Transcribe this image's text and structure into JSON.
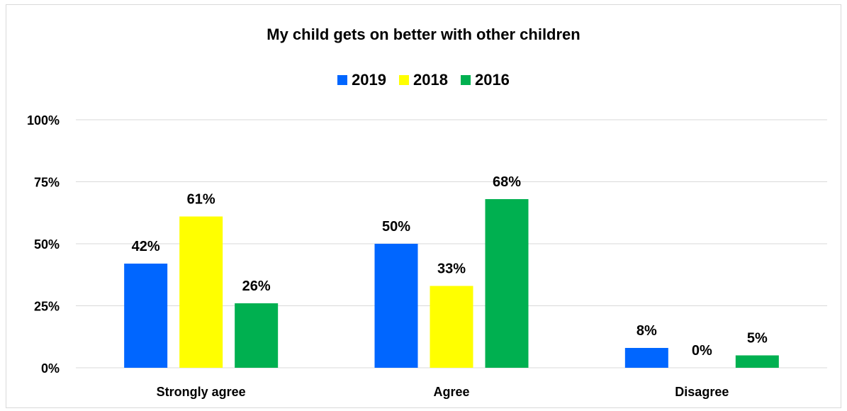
{
  "chart_data": {
    "type": "bar",
    "title": "My child gets on better with other children",
    "categories": [
      "Strongly agree",
      "Agree",
      "Disagree"
    ],
    "series": [
      {
        "name": "2019",
        "color": "#0066ff",
        "values": [
          42,
          50,
          8
        ],
        "labels": [
          "42%",
          "50%",
          "8%"
        ]
      },
      {
        "name": "2018",
        "color": "#ffff00",
        "values": [
          61,
          33,
          0
        ],
        "labels": [
          "61%",
          "33%",
          "0%"
        ]
      },
      {
        "name": "2016",
        "color": "#00b050",
        "values": [
          26,
          68,
          5
        ],
        "labels": [
          "26%",
          "68%",
          "5%"
        ]
      }
    ],
    "yticks": [
      "0%",
      "25%",
      "50%",
      "75%",
      "100%"
    ],
    "ylim": [
      0,
      100
    ],
    "grid": true,
    "legend_position": "top"
  }
}
